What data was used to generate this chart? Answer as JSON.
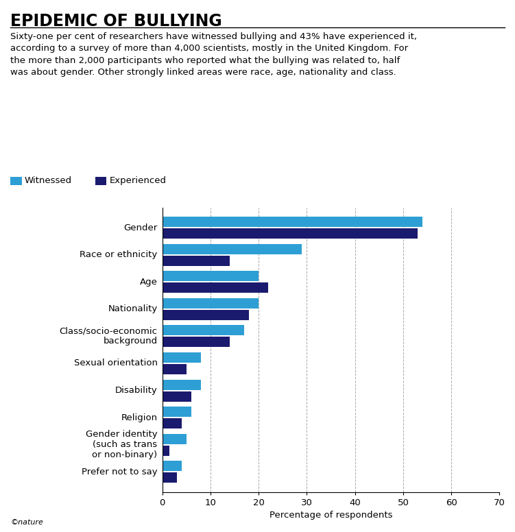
{
  "title": "EPIDEMIC OF BULLYING",
  "subtitle": "Sixty-one per cent of researchers have witnessed bullying and 43% have experienced it,\naccording to a survey of more than 4,000 scientists, mostly in the United Kingdom. For\nthe more than 2,000 participants who reported what the bullying was related to, half\nwas about gender. Other strongly linked areas were race, age, nationality and class.",
  "categories": [
    "Gender",
    "Race or ethnicity",
    "Age",
    "Nationality",
    "Class/socio-economic\nbackground",
    "Sexual orientation",
    "Disability",
    "Religion",
    "Gender identity\n(such as trans\nor non-binary)",
    "Prefer not to say"
  ],
  "witnessed": [
    54,
    29,
    20,
    20,
    17,
    8,
    8,
    6,
    5,
    4
  ],
  "experienced": [
    53,
    14,
    22,
    18,
    14,
    5,
    6,
    4,
    1.5,
    3
  ],
  "witnessed_color": "#2e9fd4",
  "experienced_color": "#1a1a6e",
  "xlabel": "Percentage of respondents",
  "legend_witnessed": "Witnessed",
  "legend_experienced": "Experienced",
  "xlim": [
    0,
    70
  ],
  "xticks": [
    0,
    10,
    20,
    30,
    40,
    50,
    60,
    70
  ],
  "bar_height": 0.38,
  "bar_gap": 0.05,
  "nature_text": "©nature",
  "title_fontsize": 17,
  "subtitle_fontsize": 9.5,
  "label_fontsize": 9.5,
  "tick_fontsize": 9.5,
  "legend_fontsize": 9.5,
  "xlabel_fontsize": 9.5
}
